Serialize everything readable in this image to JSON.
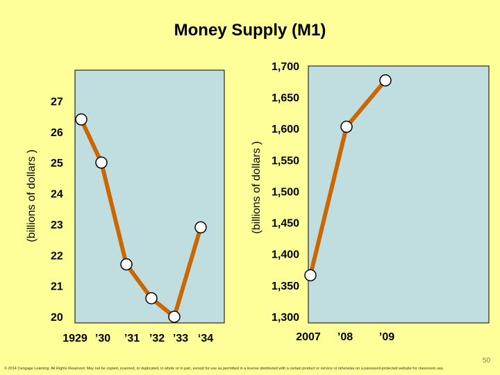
{
  "title": "Money Supply (M1)",
  "page_number": "50",
  "footer": "© 2014 Cengage Learning. All Rights Reserved. May not be copied, scanned, or duplicated, in whole or in part, except for use as permitted in a license distributed with a certain product or service or otherwise on a password-protected website for classroom use.",
  "colors": {
    "background": "#ffff99",
    "plot_area": "#c0dee0",
    "line": "#cc6600",
    "marker": "#ffffff"
  },
  "chart_data": [
    {
      "type": "line",
      "title": "Money Supply (M1)",
      "ylabel": "(billions of dollars )",
      "x": [
        "1929",
        "’30",
        "’31",
        "’32",
        "’33",
        "‘34"
      ],
      "tick_labels": [
        "20",
        "21",
        "22",
        "23",
        "24",
        "25",
        "26",
        "27"
      ],
      "ylim": [
        19.8,
        28
      ],
      "series": [
        {
          "values": [
            26.4,
            25.0,
            21.7,
            20.6,
            20.0,
            22.9
          ]
        }
      ]
    },
    {
      "type": "line",
      "ylabel": "(billions of dollars )",
      "x": [
        "2007",
        "’08",
        "’09"
      ],
      "tick_labels": [
        "1,300",
        "1,350",
        "1,400",
        "1,450",
        "1,500",
        "1,550",
        "1,600",
        "1,650",
        "1,700"
      ],
      "ylim": [
        1290,
        1700
      ],
      "series": [
        {
          "values": [
            1366,
            1603,
            1677
          ]
        }
      ]
    }
  ]
}
